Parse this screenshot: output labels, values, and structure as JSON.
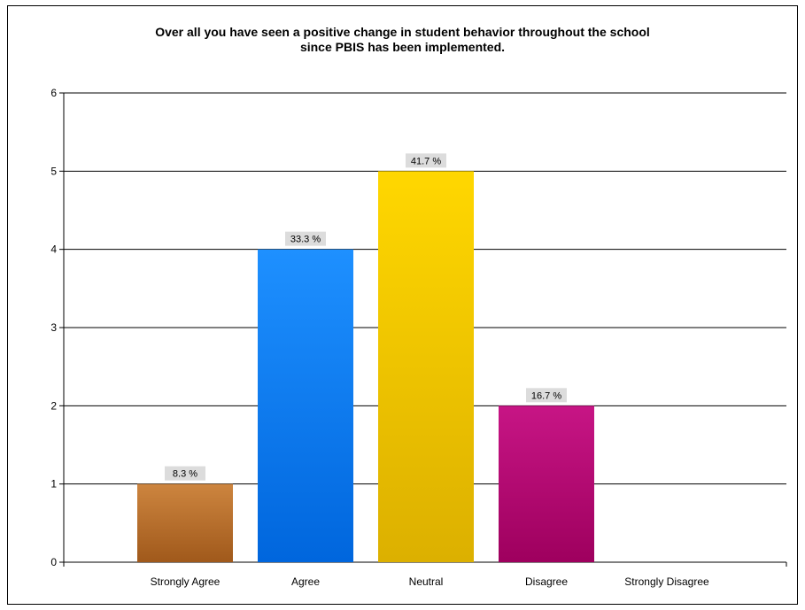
{
  "chart_data": {
    "type": "bar",
    "title_line1": "Over all you have seen a positive change in student behavior throughout the school",
    "title_line2": "since PBIS has been implemented.",
    "categories": [
      "Strongly Agree",
      "Agree",
      "Neutral",
      "Disagree",
      "Strongly Disagree"
    ],
    "values": [
      1,
      4,
      5,
      2,
      0
    ],
    "data_labels": [
      "8.3 %",
      "33.3 %",
      "41.7 %",
      "16.7 %",
      ""
    ],
    "ylim": [
      0,
      6
    ],
    "yticks": [
      "0",
      "1",
      "2",
      "3",
      "4",
      "5",
      "6"
    ],
    "grid": true,
    "legend": "none",
    "colors": [
      [
        "#cd853f",
        "#a0591b"
      ],
      [
        "#1e90ff",
        "#0066dd"
      ],
      [
        "#ffd700",
        "#dcb000"
      ],
      [
        "#c71585",
        "#9e005e"
      ],
      [
        "#888888",
        "#666666"
      ]
    ],
    "label_bg": "#dcdcdc"
  }
}
